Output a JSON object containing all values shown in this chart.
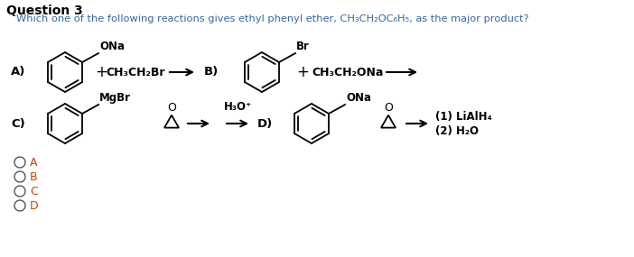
{
  "title": "Question 3",
  "subtitle": "Which one of the following reactions gives ethyl phenyl ether, CH3CH2OC6H5, as the major product?",
  "bg_color": "#ffffff",
  "title_color": "#000000",
  "subtitle_color": "#3366aa",
  "options": [
    "A",
    "B",
    "C",
    "D"
  ],
  "option_colors": [
    "#cc4400",
    "#cc4400",
    "#cc4400",
    "#cc4400"
  ]
}
